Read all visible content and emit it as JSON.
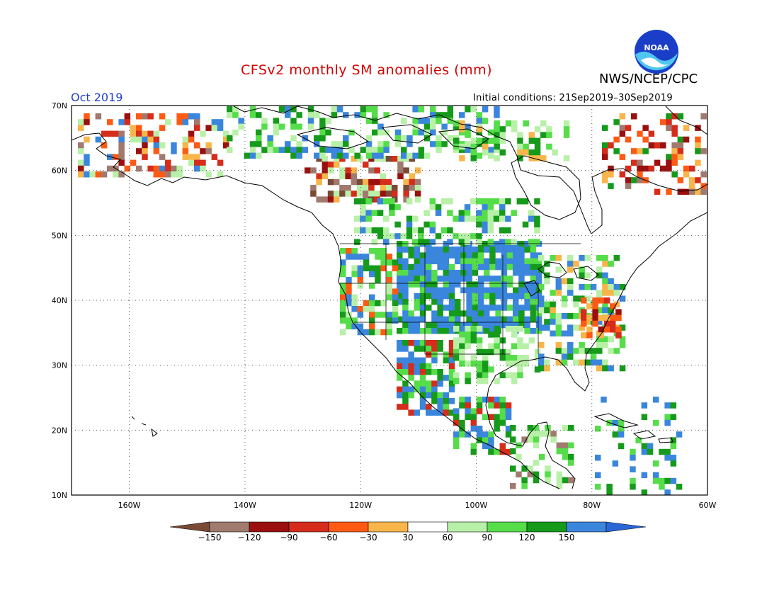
{
  "title": "CFSv2 monthly SM anomalies (mm)",
  "valid_month": "Oct 2019",
  "initial_conditions": "Initial conditions: 21Sep2019–30Sep2019",
  "org": "NWS/NCEP/CPC",
  "logo_text": "NOAA",
  "map": {
    "region": "North America",
    "lon_range": [
      -170,
      -60
    ],
    "lat_range": [
      10,
      70
    ],
    "lat_labels": [
      "70N",
      "60N",
      "50N",
      "40N",
      "30N",
      "20N",
      "10N"
    ],
    "lon_labels": [
      "160W",
      "140W",
      "120W",
      "100W",
      "80W",
      "60W"
    ],
    "grid": "dotted"
  },
  "colorbar": {
    "levels": [
      "−150",
      "−120",
      "−90",
      "−60",
      "−30",
      "30",
      "60",
      "90",
      "120",
      "150"
    ],
    "colors": [
      "#7a4a37",
      "#a07a6f",
      "#9a0f0f",
      "#d62c1b",
      "#ff5a14",
      "#f7b54a",
      "#ffffff",
      "#b8f0a8",
      "#55dd4a",
      "#159a1b",
      "#3a86dd",
      "#2a66d8"
    ]
  }
}
